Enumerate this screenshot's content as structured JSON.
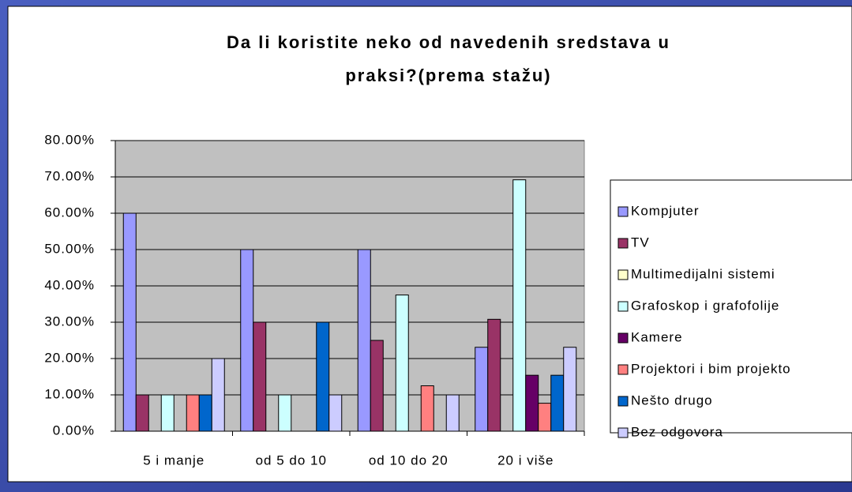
{
  "chart_data": {
    "type": "bar",
    "title": [
      "Da li koristite neko od navedenih sredstava u",
      "praksi?(prema stažu)"
    ],
    "categories": [
      "5 i manje",
      "od 5 do 10",
      "od 10 do 20",
      "20 i više"
    ],
    "series": [
      {
        "name": "Kompjuter",
        "color": "#9999ff",
        "values": [
          60,
          50,
          50,
          23.1
        ]
      },
      {
        "name": "TV",
        "color": "#993366",
        "values": [
          10,
          30,
          25,
          30.8
        ]
      },
      {
        "name": "Multimedijalni sistemi",
        "color": "#ffffcc",
        "values": [
          0,
          0,
          0,
          0
        ]
      },
      {
        "name": "Grafoskop i grafofolije",
        "color": "#ccffff",
        "values": [
          10,
          10,
          37.5,
          69.2
        ]
      },
      {
        "name": "Kamere",
        "color": "#660066",
        "values": [
          0,
          0,
          0,
          15.4
        ]
      },
      {
        "name": "Projektori i bim projekto",
        "color": "#ff8080",
        "values": [
          10,
          0,
          12.5,
          7.7
        ]
      },
      {
        "name": "Nešto drugo",
        "color": "#0066cc",
        "values": [
          10,
          30,
          0,
          15.4
        ]
      },
      {
        "name": "Bez odgovora",
        "color": "#ccccff",
        "values": [
          20,
          10,
          10,
          23.1
        ]
      }
    ],
    "ylim": [
      0,
      80
    ],
    "yticks": [
      {
        "value": 0,
        "label": "0.00%"
      },
      {
        "value": 10,
        "label": "10.00%"
      },
      {
        "value": 20,
        "label": "20.00%"
      },
      {
        "value": 30,
        "label": "30.00%"
      },
      {
        "value": 40,
        "label": "40.00%"
      },
      {
        "value": 50,
        "label": "50.00%"
      },
      {
        "value": 60,
        "label": "60.00%"
      },
      {
        "value": 70,
        "label": "70.00%"
      },
      {
        "value": 80,
        "label": "80.00%"
      }
    ],
    "grid": true,
    "legend": "right"
  }
}
